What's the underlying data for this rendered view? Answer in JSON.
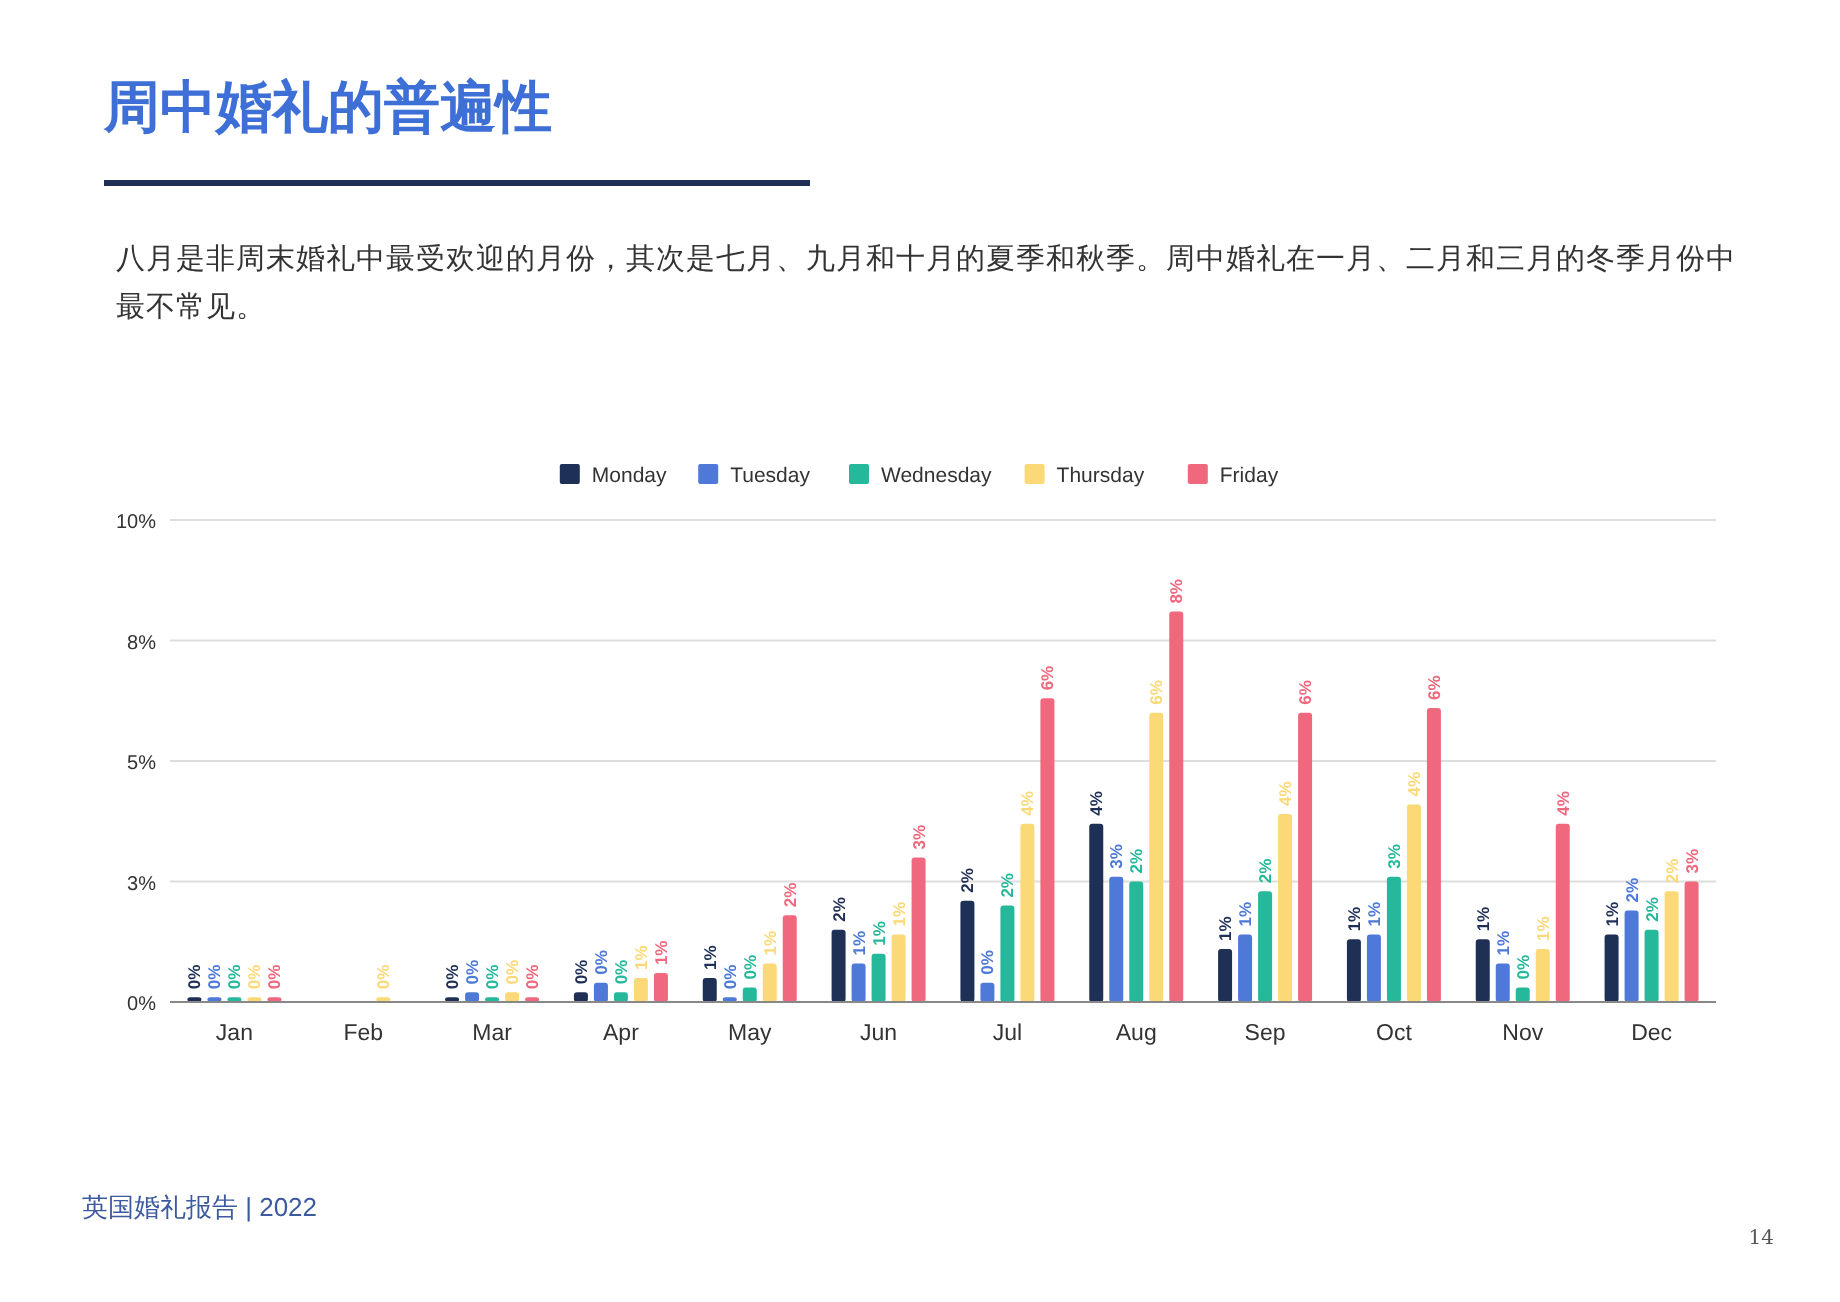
{
  "chart_data": {
    "type": "bar",
    "title": "周中婚礼的普遍性",
    "subtitle": "八月是非周末婚礼中最受欢迎的月份，其次是七月、九月和十月的夏季和秋季。周中婚礼在一月、二月和三月的冬季月份中最不常见。",
    "categories": [
      "Jan",
      "Feb",
      "Mar",
      "Apr",
      "May",
      "Jun",
      "Jul",
      "Aug",
      "Sep",
      "Oct",
      "Nov",
      "Dec"
    ],
    "series": [
      {
        "name": "Monday",
        "color": "#1f3057",
        "values": [
          0.1,
          null,
          0.1,
          0.2,
          0.5,
          1.5,
          2.1,
          3.7,
          1.1,
          1.3,
          1.3,
          1.4
        ],
        "value_labels": [
          "0%",
          null,
          "0%",
          "0%",
          "1%",
          "2%",
          "2%",
          "4%",
          "1%",
          "1%",
          "1%",
          "1%"
        ]
      },
      {
        "name": "Tuesday",
        "color": "#4e79d8",
        "values": [
          0.1,
          null,
          0.2,
          0.4,
          0.1,
          0.8,
          0.4,
          2.6,
          1.4,
          1.4,
          0.8,
          1.9
        ],
        "value_labels": [
          "0%",
          null,
          "0%",
          "0%",
          "0%",
          "1%",
          "0%",
          "3%",
          "1%",
          "1%",
          "1%",
          "2%"
        ]
      },
      {
        "name": "Wednesday",
        "color": "#26b89a",
        "values": [
          0.1,
          null,
          0.1,
          0.2,
          0.3,
          1.0,
          2.0,
          2.5,
          2.3,
          2.6,
          0.3,
          1.5
        ],
        "value_labels": [
          "0%",
          null,
          "0%",
          "0%",
          "0%",
          "1%",
          "2%",
          "2%",
          "2%",
          "3%",
          "0%",
          "2%"
        ]
      },
      {
        "name": "Thursday",
        "color": "#fcd977",
        "values": [
          0.1,
          0.1,
          0.2,
          0.5,
          0.8,
          1.4,
          3.7,
          6.0,
          3.9,
          4.1,
          1.1,
          2.3
        ],
        "value_labels": [
          "0%",
          "0%",
          "0%",
          "1%",
          "1%",
          "1%",
          "4%",
          "6%",
          "4%",
          "4%",
          "1%",
          "2%"
        ]
      },
      {
        "name": "Friday",
        "color": "#f0687e",
        "values": [
          0.1,
          null,
          0.1,
          0.6,
          1.8,
          3.0,
          6.3,
          8.1,
          6.0,
          6.1,
          3.7,
          2.5
        ],
        "value_labels": [
          "0%",
          null,
          "0%",
          "1%",
          "2%",
          "3%",
          "6%",
          "8%",
          "6%",
          "6%",
          "4%",
          "3%"
        ]
      }
    ],
    "ylim": [
      0,
      10
    ],
    "yticks": [
      {
        "value": 0,
        "label": "0%"
      },
      {
        "value": 2.5,
        "label": "3%"
      },
      {
        "value": 5,
        "label": "5%"
      },
      {
        "value": 7.5,
        "label": "8%"
      },
      {
        "value": 10,
        "label": "10%"
      }
    ],
    "grid": "y",
    "legend": "top",
    "annotations": [
      "英国婚礼报告 | 2022",
      "14"
    ]
  }
}
